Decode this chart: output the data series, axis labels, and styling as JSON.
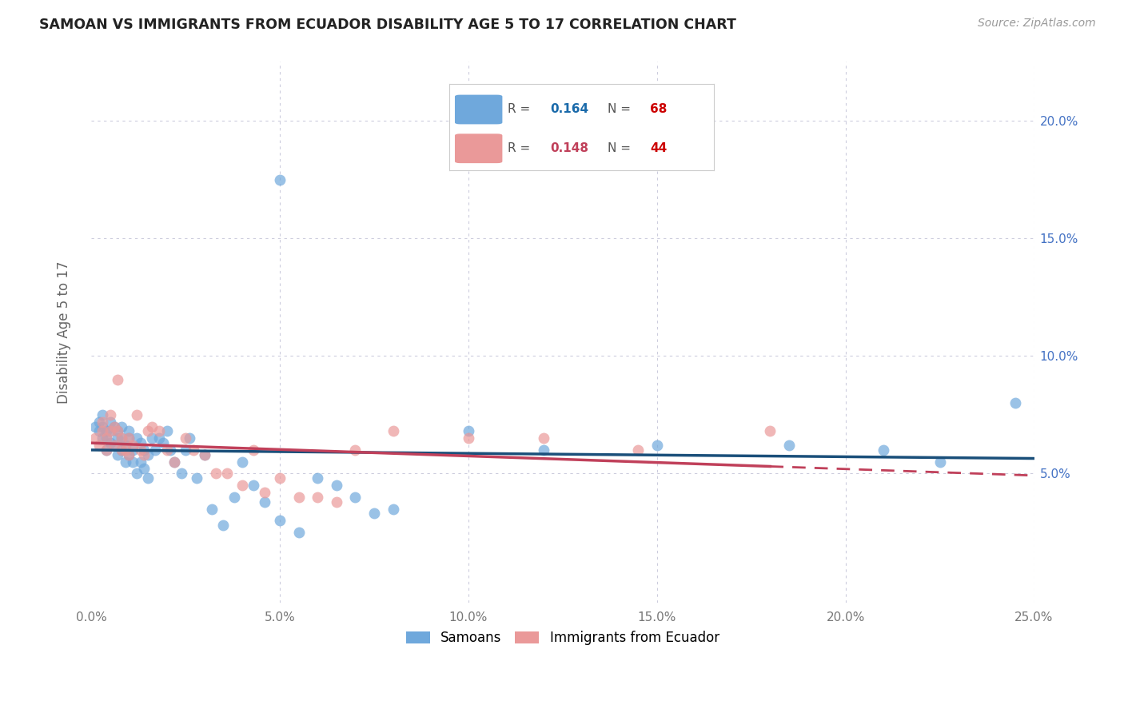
{
  "title": "SAMOAN VS IMMIGRANTS FROM ECUADOR DISABILITY AGE 5 TO 17 CORRELATION CHART",
  "source": "Source: ZipAtlas.com",
  "ylabel": "Disability Age 5 to 17",
  "xlim": [
    0.0,
    0.25
  ],
  "ylim": [
    -0.005,
    0.225
  ],
  "xticks": [
    0.0,
    0.05,
    0.1,
    0.15,
    0.2,
    0.25
  ],
  "yticks": [
    0.05,
    0.1,
    0.15,
    0.2
  ],
  "xticklabels": [
    "0.0%",
    "5.0%",
    "10.0%",
    "15.0%",
    "20.0%",
    "25.0%"
  ],
  "yticklabels": [
    "5.0%",
    "10.0%",
    "15.0%",
    "20.0%"
  ],
  "blue_color": "#6fa8dc",
  "pink_color": "#ea9999",
  "blue_line_color": "#1a4f7a",
  "pink_line_color": "#c0405a",
  "grid_color": "#ccccdd",
  "right_axis_color": "#4472c4",
  "legend_R_blue": "0.164",
  "legend_N_blue": "68",
  "legend_R_pink": "0.148",
  "legend_N_pink": "44",
  "legend_label_blue": "Samoans",
  "legend_label_pink": "Immigrants from Ecuador",
  "blue_scatter_x": [
    0.001,
    0.002,
    0.002,
    0.003,
    0.003,
    0.003,
    0.004,
    0.004,
    0.004,
    0.005,
    0.005,
    0.005,
    0.006,
    0.006,
    0.007,
    0.007,
    0.007,
    0.008,
    0.008,
    0.008,
    0.009,
    0.009,
    0.01,
    0.01,
    0.01,
    0.011,
    0.011,
    0.012,
    0.012,
    0.013,
    0.013,
    0.014,
    0.014,
    0.015,
    0.015,
    0.016,
    0.017,
    0.018,
    0.019,
    0.02,
    0.021,
    0.022,
    0.024,
    0.025,
    0.026,
    0.028,
    0.03,
    0.032,
    0.035,
    0.038,
    0.04,
    0.043,
    0.046,
    0.05,
    0.055,
    0.06,
    0.065,
    0.07,
    0.075,
    0.08,
    0.05,
    0.1,
    0.12,
    0.15,
    0.185,
    0.21,
    0.225,
    0.245
  ],
  "blue_scatter_y": [
    0.07,
    0.068,
    0.072,
    0.065,
    0.07,
    0.075,
    0.06,
    0.065,
    0.068,
    0.063,
    0.068,
    0.072,
    0.062,
    0.07,
    0.058,
    0.065,
    0.068,
    0.06,
    0.065,
    0.07,
    0.055,
    0.062,
    0.058,
    0.065,
    0.068,
    0.055,
    0.06,
    0.05,
    0.065,
    0.055,
    0.063,
    0.052,
    0.06,
    0.048,
    0.058,
    0.065,
    0.06,
    0.065,
    0.063,
    0.068,
    0.06,
    0.055,
    0.05,
    0.06,
    0.065,
    0.048,
    0.058,
    0.035,
    0.028,
    0.04,
    0.055,
    0.045,
    0.038,
    0.03,
    0.025,
    0.048,
    0.045,
    0.04,
    0.033,
    0.035,
    0.175,
    0.068,
    0.06,
    0.062,
    0.062,
    0.06,
    0.055,
    0.08
  ],
  "pink_scatter_x": [
    0.001,
    0.002,
    0.003,
    0.003,
    0.004,
    0.004,
    0.005,
    0.005,
    0.006,
    0.006,
    0.007,
    0.007,
    0.008,
    0.008,
    0.009,
    0.01,
    0.01,
    0.011,
    0.012,
    0.013,
    0.014,
    0.015,
    0.016,
    0.018,
    0.02,
    0.022,
    0.025,
    0.027,
    0.03,
    0.033,
    0.036,
    0.04,
    0.043,
    0.046,
    0.05,
    0.055,
    0.06,
    0.065,
    0.07,
    0.08,
    0.1,
    0.12,
    0.145,
    0.18
  ],
  "pink_scatter_y": [
    0.065,
    0.062,
    0.068,
    0.072,
    0.06,
    0.065,
    0.068,
    0.075,
    0.062,
    0.07,
    0.09,
    0.068,
    0.06,
    0.065,
    0.06,
    0.058,
    0.065,
    0.062,
    0.075,
    0.06,
    0.058,
    0.068,
    0.07,
    0.068,
    0.06,
    0.055,
    0.065,
    0.06,
    0.058,
    0.05,
    0.05,
    0.045,
    0.06,
    0.042,
    0.048,
    0.04,
    0.04,
    0.038,
    0.06,
    0.068,
    0.065,
    0.065,
    0.06,
    0.068
  ]
}
